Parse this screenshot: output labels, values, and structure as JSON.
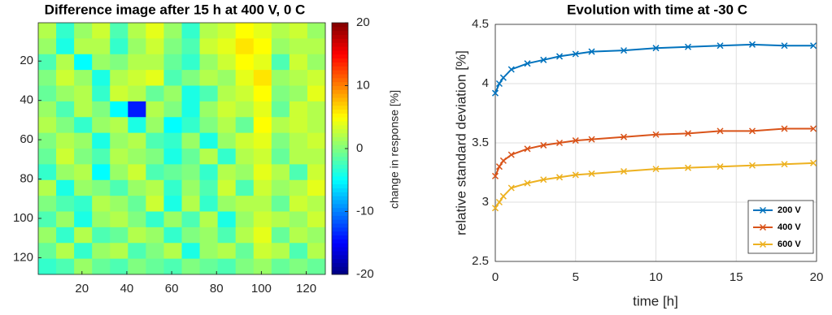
{
  "chart_data": [
    {
      "type": "heatmap",
      "title": "Difference image after 15 h at 400 V, 0 C",
      "colorbar_label": "change in response [%]",
      "colormap": "jet",
      "xlim": [
        0.5,
        128.5
      ],
      "ylim": [
        0.5,
        128.5
      ],
      "y_reversed": true,
      "xticks": [
        20,
        40,
        60,
        80,
        100,
        120
      ],
      "yticks": [
        20,
        40,
        60,
        80,
        100,
        120
      ],
      "clim": [
        -20,
        20
      ],
      "cticks": [
        -20,
        -10,
        0,
        10,
        20
      ],
      "z": [
        [
          2,
          -3,
          1,
          3,
          -2,
          2,
          4,
          1,
          -3,
          2,
          3,
          5,
          4,
          2,
          3,
          1
        ],
        [
          1,
          -4,
          2,
          2,
          -3,
          1,
          3,
          0,
          -2,
          3,
          4,
          6,
          5,
          1,
          2,
          2
        ],
        [
          -2,
          2,
          -5,
          1,
          0,
          2,
          2,
          -1,
          -3,
          1,
          3,
          5,
          4,
          -2,
          3,
          1
        ],
        [
          0,
          3,
          1,
          -4,
          2,
          3,
          4,
          -2,
          0,
          2,
          1,
          4,
          6,
          1,
          2,
          3
        ],
        [
          -1,
          1,
          2,
          -3,
          3,
          2,
          -1,
          1,
          -4,
          -2,
          2,
          3,
          5,
          0,
          1,
          4
        ],
        [
          1,
          -2,
          2,
          0,
          -5,
          -14,
          2,
          0,
          -4,
          1,
          3,
          2,
          4,
          -1,
          3,
          2
        ],
        [
          2,
          0,
          -3,
          1,
          2,
          -4,
          1,
          -5,
          -3,
          0,
          2,
          -1,
          5,
          2,
          3,
          2
        ],
        [
          0,
          2,
          1,
          -4,
          1,
          2,
          -2,
          -3,
          1,
          -4,
          1,
          3,
          4,
          0,
          2,
          3
        ],
        [
          -1,
          3,
          0,
          -2,
          2,
          1,
          0,
          -4,
          -1,
          2,
          -3,
          2,
          3,
          -1,
          2,
          2
        ],
        [
          -3,
          1,
          2,
          -5,
          1,
          3,
          -2,
          -1,
          0,
          -3,
          2,
          1,
          4,
          2,
          -2,
          3
        ],
        [
          2,
          -4,
          1,
          0,
          -2,
          1,
          2,
          -3,
          1,
          -2,
          3,
          -2,
          3,
          1,
          2,
          4
        ],
        [
          0,
          -2,
          -3,
          2,
          1,
          -1,
          3,
          -4,
          2,
          -3,
          1,
          2,
          2,
          -1,
          3,
          2
        ],
        [
          -2,
          1,
          -4,
          1,
          2,
          0,
          -3,
          1,
          -2,
          2,
          -4,
          1,
          3,
          2,
          1,
          3
        ],
        [
          1,
          -3,
          2,
          -2,
          -1,
          2,
          1,
          -3,
          0,
          1,
          -2,
          2,
          4,
          -1,
          2,
          1
        ],
        [
          -1,
          2,
          -3,
          1,
          2,
          -2,
          0,
          2,
          -4,
          1,
          2,
          -1,
          3,
          2,
          -2,
          2
        ],
        [
          -3,
          -2,
          1,
          -1,
          -2,
          0,
          -1,
          -2,
          0,
          -1,
          -2,
          0,
          1,
          -1,
          0,
          -1
        ]
      ]
    },
    {
      "type": "line",
      "title": "Evolution with time at -30 C",
      "x_label": "time [h]",
      "y_label": "relative standard deviation [%]",
      "xlim": [
        0,
        20
      ],
      "ylim": [
        2.5,
        4.5
      ],
      "xticks": [
        0,
        5,
        10,
        15,
        20
      ],
      "yticks": [
        2.5,
        3,
        3.5,
        4,
        4.5
      ],
      "grid": true,
      "legend": "lower right",
      "x": [
        0,
        0.25,
        0.5,
        1,
        2,
        3,
        4,
        5,
        6,
        8,
        10,
        12,
        14,
        16,
        18,
        19.8
      ],
      "series": [
        {
          "name": "200 V",
          "color": "#0072bd",
          "values": [
            3.92,
            4.0,
            4.05,
            4.12,
            4.17,
            4.2,
            4.23,
            4.25,
            4.27,
            4.28,
            4.3,
            4.31,
            4.32,
            4.33,
            4.32,
            4.32
          ]
        },
        {
          "name": "400 V",
          "color": "#d95319",
          "values": [
            3.22,
            3.3,
            3.35,
            3.4,
            3.45,
            3.48,
            3.5,
            3.52,
            3.53,
            3.55,
            3.57,
            3.58,
            3.6,
            3.6,
            3.62,
            3.62
          ]
        },
        {
          "name": "600 V",
          "color": "#edb120",
          "values": [
            2.95,
            3.0,
            3.05,
            3.12,
            3.16,
            3.19,
            3.21,
            3.23,
            3.24,
            3.26,
            3.28,
            3.29,
            3.3,
            3.31,
            3.32,
            3.33
          ]
        }
      ]
    }
  ]
}
